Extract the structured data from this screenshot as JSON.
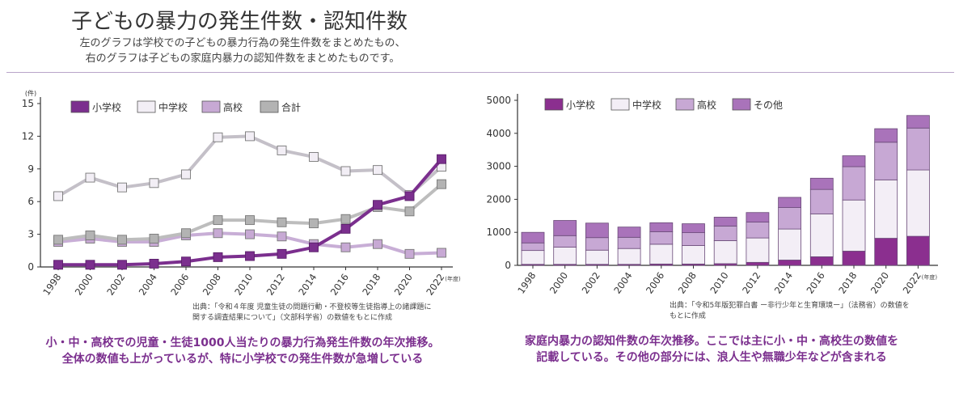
{
  "header": {
    "title": "子どもの暴力の発生件数・認知件数",
    "subtitle_line1": "左のグラフは学校での子どもの暴力行為の発生件数をまとめたもの、",
    "subtitle_line2": "右のグラフは子どもの家庭内暴力の認知件数をまとめたものです。"
  },
  "chart_data": [
    {
      "type": "line",
      "unit_label": "(件)",
      "x_unit_label": "(年度)",
      "x": [
        "1998",
        "2000",
        "2002",
        "2004",
        "2006",
        "2008",
        "2010",
        "2012",
        "2014",
        "2016",
        "2018",
        "2020",
        "2022"
      ],
      "yticks": [
        "0",
        "3",
        "6",
        "9",
        "12",
        "15"
      ],
      "ylim": [
        0,
        15
      ],
      "legend_position": "top-left",
      "series": [
        {
          "name": "小学校",
          "color": "#7b2f8e",
          "values": [
            0.2,
            0.2,
            0.2,
            0.3,
            0.5,
            0.9,
            1.0,
            1.2,
            1.8,
            3.5,
            5.7,
            6.5,
            9.9
          ]
        },
        {
          "name": "中学校",
          "color": "#f2eef5",
          "values": [
            6.5,
            8.2,
            7.3,
            7.7,
            8.5,
            11.9,
            12.0,
            10.7,
            10.1,
            8.8,
            8.9,
            6.6,
            9.2
          ]
        },
        {
          "name": "高校",
          "color": "#c7a9d4",
          "values": [
            2.3,
            2.6,
            2.3,
            2.3,
            2.9,
            3.1,
            3.0,
            2.8,
            2.1,
            1.8,
            2.1,
            1.2,
            1.3
          ]
        },
        {
          "name": "合計",
          "color": "#b3b3b3",
          "values": [
            2.5,
            2.9,
            2.5,
            2.6,
            3.1,
            4.3,
            4.3,
            4.1,
            4.0,
            4.4,
            5.5,
            5.1,
            7.6
          ]
        }
      ]
    },
    {
      "type": "bar",
      "stacked": true,
      "x_unit_label": "(年度)",
      "categories": [
        "1998",
        "2000",
        "2002",
        "2004",
        "2006",
        "2008",
        "2010",
        "2012",
        "2014",
        "2016",
        "2018",
        "2020",
        "2022"
      ],
      "yticks": [
        "0",
        "1000",
        "2000",
        "3000",
        "4000",
        "5000"
      ],
      "ylim": [
        0,
        5000
      ],
      "legend_position": "top-left",
      "series": [
        {
          "name": "小学校",
          "color": "#8b2f8f",
          "values": [
            30,
            30,
            30,
            30,
            40,
            40,
            50,
            90,
            160,
            260,
            430,
            820,
            880
          ]
        },
        {
          "name": "中学校",
          "color": "#f3eef6",
          "values": [
            420,
            520,
            430,
            480,
            600,
            560,
            700,
            740,
            940,
            1300,
            1550,
            1770,
            2010
          ]
        },
        {
          "name": "高校",
          "color": "#c7a8d4",
          "values": [
            230,
            350,
            380,
            340,
            380,
            390,
            440,
            480,
            650,
            740,
            1010,
            1140,
            1270
          ]
        },
        {
          "name": "その他",
          "color": "#a973ba",
          "values": [
            320,
            460,
            440,
            310,
            270,
            270,
            270,
            290,
            310,
            340,
            330,
            410,
            380
          ]
        }
      ]
    }
  ],
  "sources": {
    "left_line1": "出典：「令和４年度 児童生徒の問題行動・不登校等生徒指導上の諸課題に",
    "left_line2": "関する調査結果について」（文部科学省）の数値をもとに作成",
    "right_line1": "出典：「令和5年版犯罪白書 ー非行少年と生育環境ー」（法務省）の数値を",
    "right_line2": "もとに作成"
  },
  "captions": {
    "left_line1": "小・中・高校での児童・生徒1000人当たりの暴力行為発生件数の年次推移。",
    "left_line2": "全体の数値も上がっているが、特に小学校での発生件数が急増している",
    "right_line1": "家庭内暴力の認知件数の年次推移。ここでは主に小・中・高校生の数値を",
    "right_line2": "記載している。その他の部分には、浪人生や無職少年などが含まれる"
  }
}
